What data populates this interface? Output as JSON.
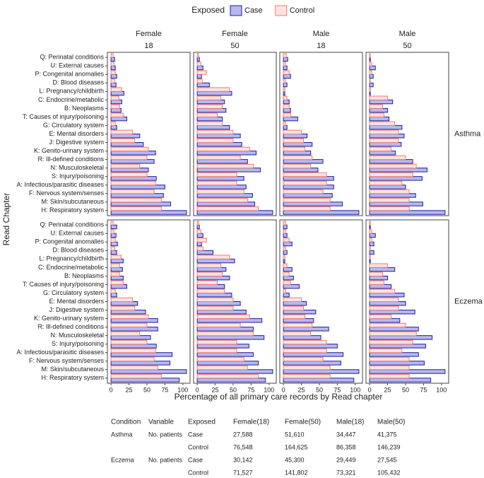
{
  "chart_data": {
    "type": "bar",
    "orientation": "horizontal",
    "legend_title": "Exposed",
    "ylabel": "Read Chapter",
    "xlabel": "Percentage of all primary care records by Read chapter",
    "series": [
      {
        "name": "Case",
        "color": "#b8b8ee",
        "edge": "#1f1f9a"
      },
      {
        "name": "Control",
        "color": "#fde3e0",
        "edge": "#f27c74"
      }
    ],
    "columns": [
      [
        "Female",
        "18"
      ],
      [
        "Female",
        "50"
      ],
      [
        "Male",
        "18"
      ],
      [
        "Male",
        "50"
      ]
    ],
    "rows": [
      "Asthma",
      "Eczema"
    ],
    "categories": [
      "Q: Perinatal conditions",
      "U: External causes",
      "P: Congenital anomalies",
      "D: Blood diseases",
      "L: Pregnancy/childbirth",
      "C: Endocrine/metabolic",
      "B: Neoplasms",
      "T: Causes of injury/poisoning",
      "G: Circulatory system",
      "E: Mental disorders",
      "J: Digestive system",
      "K: Genito-urinary system",
      "R: Ill-defined conditions",
      "N: Musculoskeletal",
      "S: Injury/poisoning",
      "A: Infectious/parasitic diseases",
      "F: Nervous system/senses",
      "M: Skin/subcutaneous",
      "H: Respiratory system"
    ],
    "xlim": [
      -5,
      110
    ],
    "xticks": [
      0,
      25,
      50,
      75,
      100
    ],
    "panels": [
      [
        [
          5,
          6,
          8,
          7,
          18,
          15,
          14,
          22,
          8,
          40,
          45,
          62,
          60,
          52,
          63,
          75,
          73,
          83,
          105
        ],
        [
          3,
          4,
          6,
          5,
          15,
          11,
          12,
          17,
          6,
          30,
          33,
          52,
          50,
          40,
          50,
          62,
          60,
          70,
          70
        ]
      ],
      [
        [
          3,
          8,
          6,
          17,
          48,
          38,
          40,
          35,
          45,
          60,
          62,
          82,
          70,
          88,
          65,
          68,
          77,
          80,
          105
        ],
        [
          2,
          5,
          13,
          7,
          45,
          33,
          35,
          28,
          35,
          50,
          50,
          73,
          60,
          78,
          55,
          55,
          65,
          70,
          85
        ]
      ],
      [
        [
          6,
          5,
          10,
          5,
          2,
          8,
          10,
          20,
          5,
          33,
          40,
          38,
          55,
          48,
          70,
          70,
          68,
          82,
          105
        ],
        [
          4,
          3,
          8,
          3,
          2,
          5,
          8,
          10,
          3,
          25,
          28,
          30,
          40,
          38,
          60,
          60,
          55,
          65,
          65
        ]
      ],
      [
        [
          1,
          8,
          5,
          5,
          1,
          32,
          25,
          27,
          45,
          48,
          44,
          36,
          60,
          80,
          73,
          50,
          64,
          74,
          105
        ],
        [
          1,
          3,
          3,
          1,
          1,
          25,
          18,
          20,
          35,
          40,
          40,
          30,
          50,
          65,
          60,
          45,
          55,
          55,
          55
        ]
      ],
      [
        [
          8,
          7,
          9,
          8,
          17,
          16,
          17,
          22,
          8,
          37,
          48,
          65,
          65,
          55,
          63,
          85,
          82,
          105,
          95
        ],
        [
          3,
          4,
          6,
          5,
          14,
          12,
          12,
          17,
          6,
          30,
          33,
          52,
          50,
          40,
          50,
          62,
          60,
          65,
          70
        ]
      ],
      [
        [
          3,
          8,
          6,
          22,
          52,
          40,
          45,
          38,
          48,
          60,
          68,
          90,
          78,
          93,
          72,
          78,
          85,
          105,
          95
        ],
        [
          2,
          5,
          13,
          8,
          45,
          33,
          35,
          28,
          38,
          50,
          50,
          73,
          60,
          78,
          55,
          55,
          65,
          70,
          85
        ]
      ],
      [
        [
          5,
          5,
          12,
          5,
          2,
          12,
          14,
          22,
          8,
          32,
          45,
          42,
          63,
          52,
          75,
          83,
          80,
          105,
          98
        ],
        [
          3,
          3,
          8,
          3,
          2,
          5,
          8,
          10,
          3,
          25,
          28,
          30,
          40,
          38,
          60,
          60,
          55,
          65,
          65
        ]
      ],
      [
        [
          1,
          8,
          6,
          6,
          1,
          35,
          25,
          30,
          48,
          50,
          63,
          42,
          68,
          87,
          78,
          68,
          76,
          105,
          85
        ],
        [
          1,
          3,
          3,
          1,
          1,
          25,
          18,
          20,
          35,
          40,
          40,
          30,
          50,
          65,
          60,
          45,
          55,
          55,
          55
        ]
      ]
    ]
  },
  "table": {
    "header": [
      "Condition",
      "Variable",
      "Exposed",
      "Female(18)",
      "Female(50)",
      "Male(18)",
      "Male(50)"
    ],
    "groups": [
      {
        "condition": "Asthma",
        "variable": "No. patients",
        "rows": [
          [
            "Case",
            "27,588",
            "51,610",
            "34,447",
            "41,375"
          ],
          [
            "Control",
            "76,548",
            "164,625",
            "86,358",
            "146,239"
          ]
        ]
      },
      {
        "condition": "Eczema",
        "variable": "No. patients",
        "rows": [
          [
            "Case",
            "30,142",
            "45,300",
            "29,449",
            "27,545"
          ],
          [
            "Control",
            "71,527",
            "141,802",
            "73,321",
            "105,432"
          ]
        ]
      }
    ]
  }
}
